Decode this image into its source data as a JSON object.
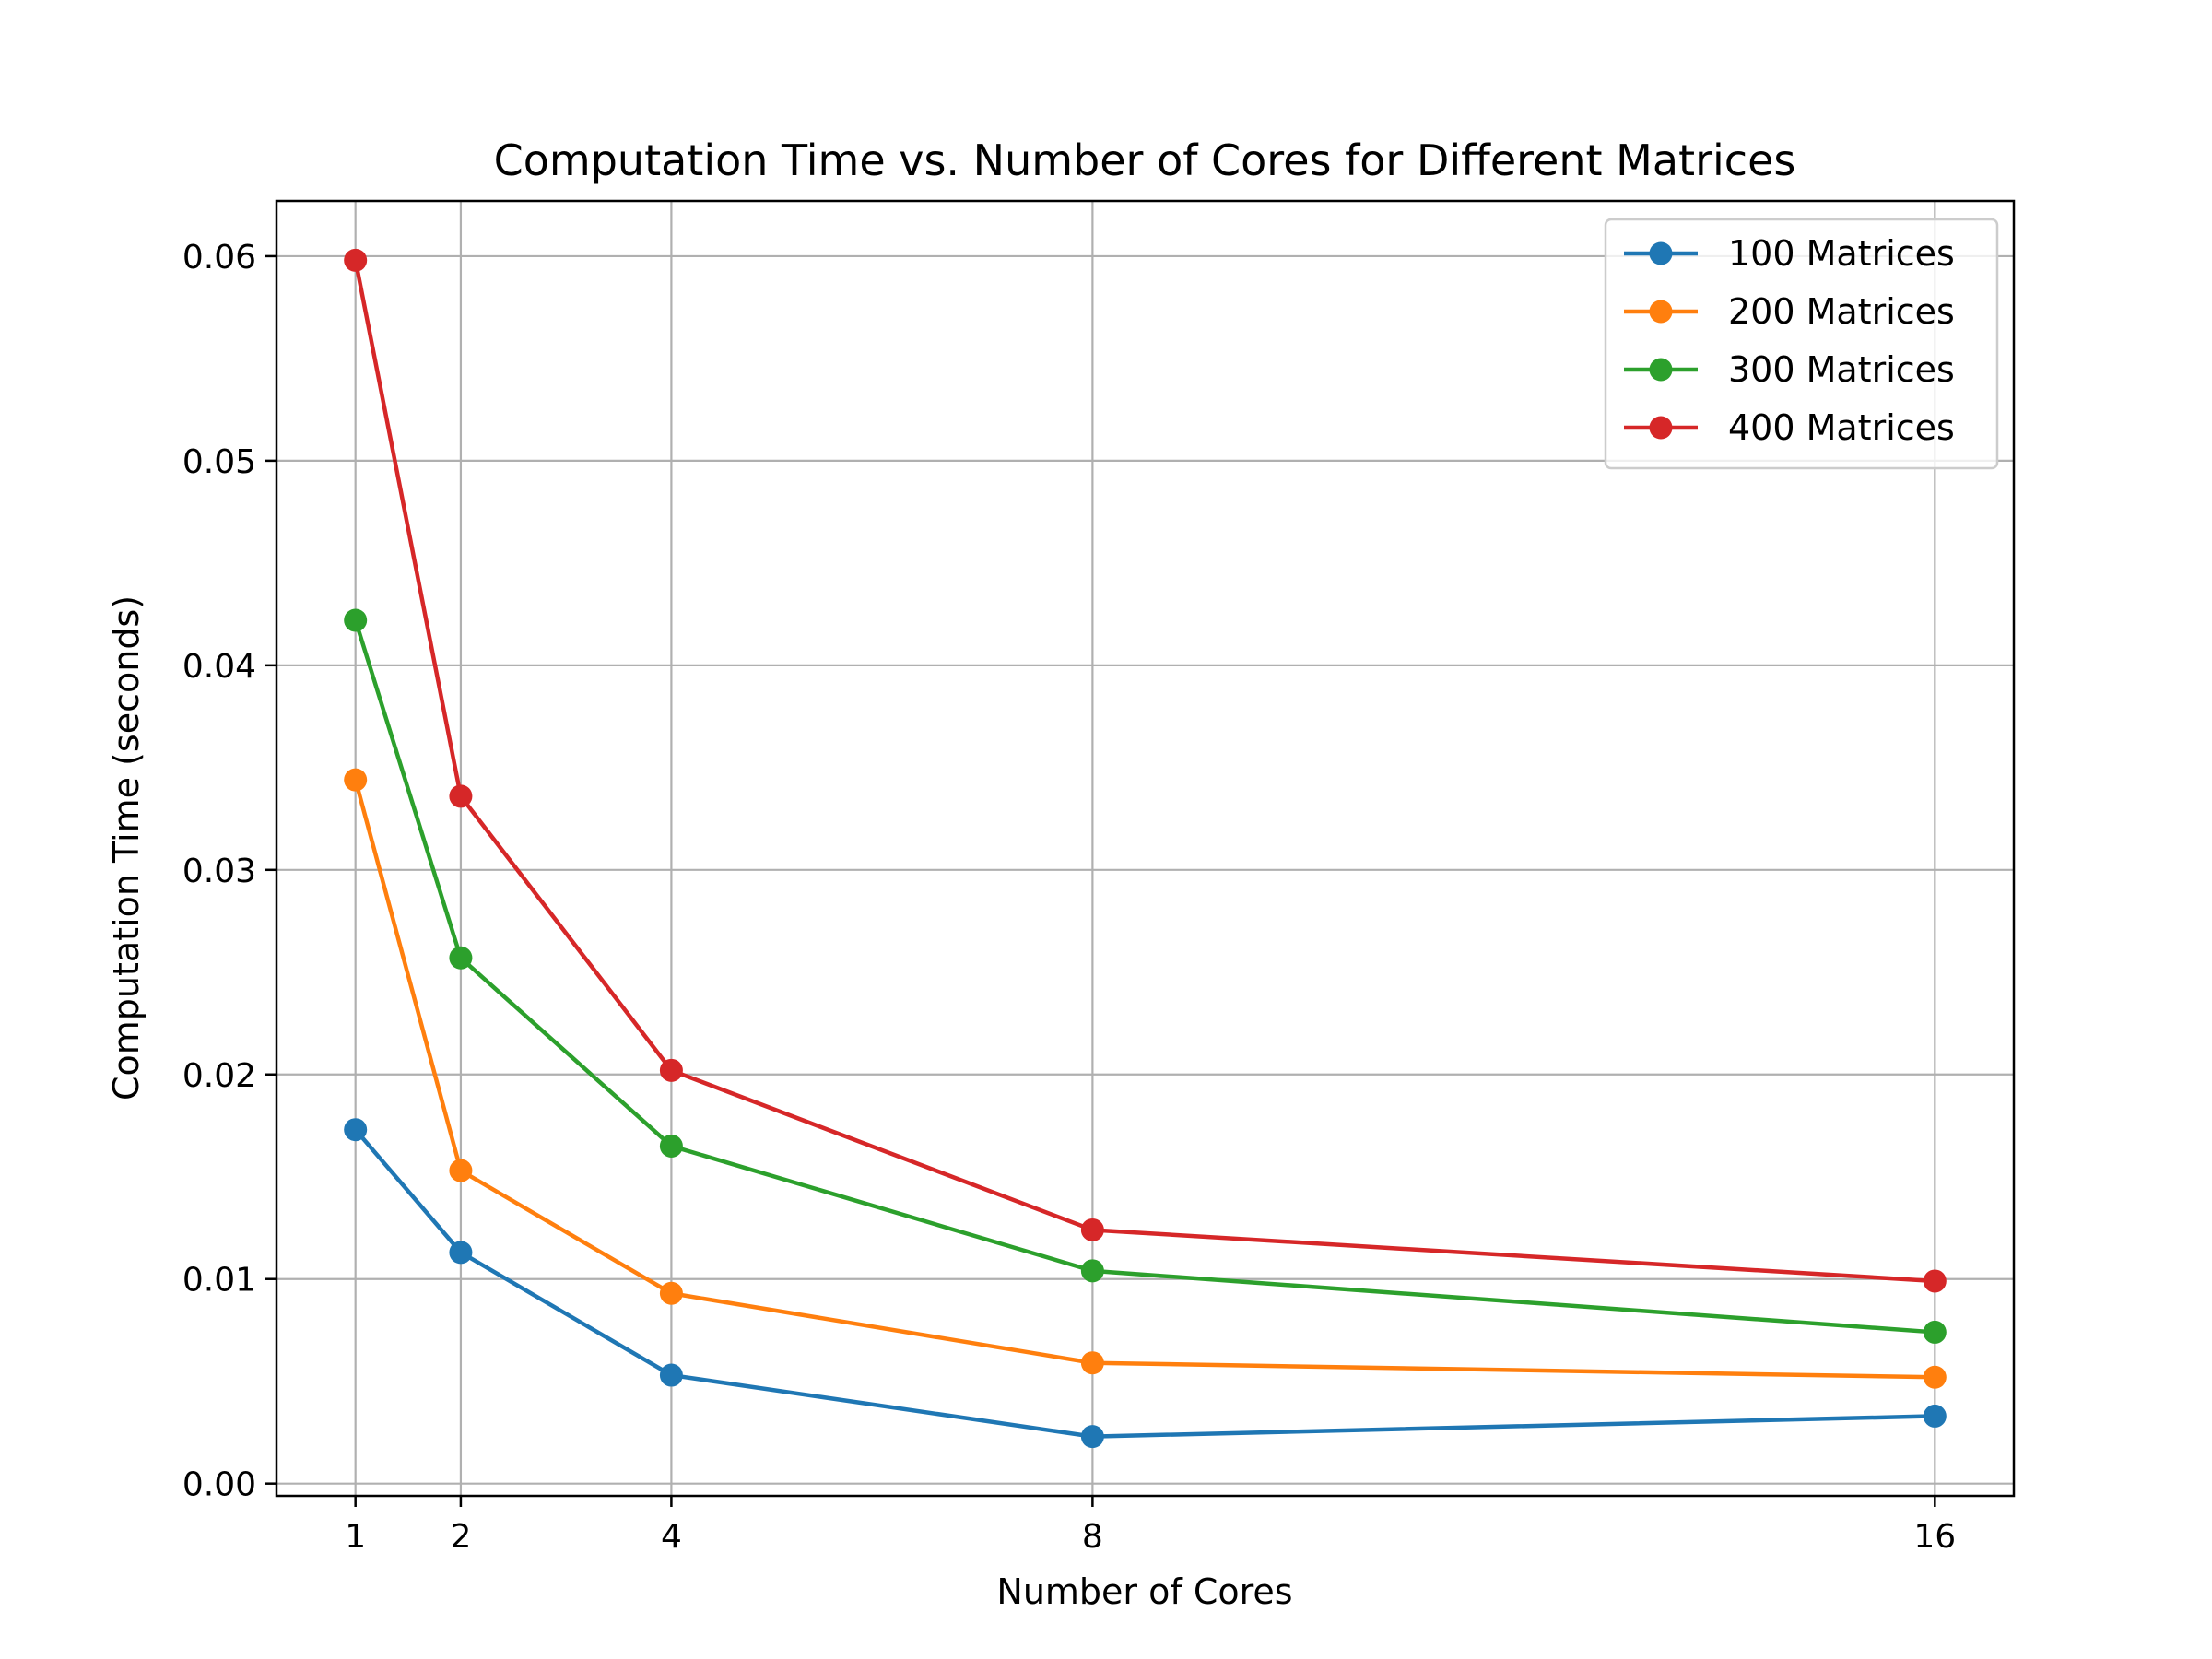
{
  "chart_data": {
    "type": "line",
    "title": "Computation Time vs. Number of Cores for Different Matrices",
    "xlabel": "Number of Cores",
    "ylabel": "Computation Time (seconds)",
    "x": [
      1,
      2,
      4,
      8,
      16
    ],
    "x_tick_labels": [
      "1",
      "2",
      "4",
      "8",
      "16"
    ],
    "xlim": [
      0.25,
      16.75
    ],
    "y_ticks": [
      0.0,
      0.01,
      0.02,
      0.03,
      0.04,
      0.05,
      0.06
    ],
    "y_tick_labels": [
      "0.00",
      "0.01",
      "0.02",
      "0.03",
      "0.04",
      "0.05",
      "0.06"
    ],
    "ylim": [
      -0.0006,
      0.0627
    ],
    "grid": true,
    "legend_position": "top-right",
    "series": [
      {
        "name": "100 Matrices",
        "color": "#1f77b4",
        "values": [
          0.0173,
          0.0113,
          0.0053,
          0.0023,
          0.0033
        ]
      },
      {
        "name": "200 Matrices",
        "color": "#ff7f0e",
        "values": [
          0.0344,
          0.0153,
          0.0093,
          0.0059,
          0.0052
        ]
      },
      {
        "name": "300 Matrices",
        "color": "#2ca02c",
        "values": [
          0.0422,
          0.0257,
          0.0165,
          0.0104,
          0.0074
        ]
      },
      {
        "name": "400 Matrices",
        "color": "#d62728",
        "values": [
          0.0598,
          0.0336,
          0.0202,
          0.0124,
          0.0099
        ]
      }
    ]
  }
}
